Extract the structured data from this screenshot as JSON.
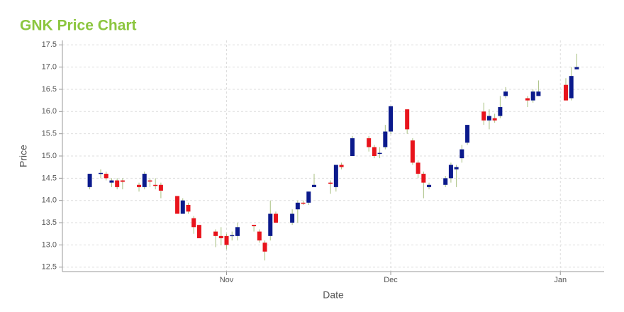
{
  "chart_data": {
    "type": "candlestick",
    "title": "GNK Price Chart",
    "x_label": "Date",
    "y_label": "Price",
    "title_color": "#8cc63f",
    "up_color": "#0b1a8c",
    "down_color": "#e8141c",
    "wick_color": "#a8c080",
    "grid": true,
    "xlim": [
      2,
      101
    ],
    "xticks": [
      {
        "value": 32,
        "label": "Nov"
      },
      {
        "value": 62,
        "label": "Dec"
      },
      {
        "value": 93,
        "label": "Jan"
      }
    ],
    "ylim": [
      12.4,
      17.6
    ],
    "yticks": [
      12.5,
      {
        "value": 13,
        "label": "13.0"
      },
      13.5,
      {
        "value": 14,
        "label": "14.0"
      },
      14.5,
      {
        "value": 15,
        "label": "15.0"
      },
      15.5,
      {
        "value": 16,
        "label": "16.0"
      },
      16.5,
      {
        "value": 17,
        "label": "17.0"
      },
      17.5
    ],
    "x": [
      7,
      9,
      10,
      11,
      12,
      13,
      16,
      17,
      18,
      19,
      20,
      23,
      24,
      25,
      26,
      27,
      30,
      31,
      32,
      33,
      34,
      37,
      38,
      39,
      40,
      41,
      44,
      45,
      46,
      47,
      48,
      51,
      52,
      53,
      55,
      58,
      59,
      60,
      61,
      62,
      65,
      66,
      67,
      68,
      69,
      72,
      73,
      74,
      75,
      76,
      79,
      80,
      81,
      82,
      83,
      87,
      88,
      89,
      94,
      95,
      96
    ],
    "open": [
      14.3,
      14.6,
      14.6,
      14.4,
      14.45,
      14.45,
      14.35,
      14.3,
      14.45,
      14.35,
      14.35,
      14.1,
      13.7,
      13.9,
      13.6,
      13.45,
      13.3,
      13.2,
      13.2,
      13.2,
      13.2,
      13.45,
      13.3,
      13.05,
      13.2,
      13.7,
      13.5,
      13.8,
      13.95,
      13.95,
      14.3,
      14.4,
      14.3,
      14.8,
      15.0,
      15.4,
      15.2,
      15.05,
      15.2,
      15.55,
      16.05,
      15.35,
      14.85,
      14.6,
      14.3,
      14.35,
      14.5,
      14.7,
      14.95,
      15.3,
      16.0,
      15.8,
      15.85,
      15.9,
      16.35,
      16.3,
      16.25,
      16.35,
      16.6,
      16.3,
      16.95
    ],
    "high": [
      14.6,
      14.7,
      14.65,
      14.5,
      14.5,
      14.5,
      14.4,
      14.65,
      14.5,
      14.5,
      14.4,
      14.1,
      14.05,
      13.95,
      13.65,
      13.45,
      13.35,
      13.4,
      13.25,
      13.3,
      13.5,
      13.45,
      13.35,
      13.1,
      14.0,
      13.75,
      13.8,
      14.0,
      14.0,
      14.2,
      14.6,
      14.45,
      14.8,
      14.85,
      15.45,
      15.45,
      15.25,
      15.2,
      15.7,
      16.12,
      16.05,
      15.4,
      14.9,
      14.65,
      14.4,
      14.55,
      14.85,
      14.8,
      15.25,
      15.7,
      16.2,
      16.05,
      15.95,
      16.35,
      16.55,
      16.35,
      16.5,
      16.7,
      16.75,
      17.0,
      17.3
    ],
    "low": [
      14.25,
      14.5,
      14.45,
      14.3,
      14.25,
      14.25,
      14.2,
      14.25,
      14.3,
      14.25,
      14.05,
      13.7,
      13.7,
      13.7,
      13.25,
      13.15,
      12.95,
      13.0,
      12.9,
      13.1,
      13.1,
      13.3,
      13.05,
      12.65,
      13.1,
      13.5,
      13.45,
      13.5,
      13.9,
      13.9,
      14.3,
      14.15,
      14.2,
      14.7,
      15.0,
      15.1,
      14.95,
      14.95,
      15.15,
      15.5,
      15.5,
      14.8,
      14.5,
      14.05,
      14.25,
      14.3,
      14.4,
      14.3,
      14.85,
      15.25,
      15.7,
      15.6,
      15.75,
      15.85,
      16.3,
      16.1,
      16.2,
      16.35,
      16.25,
      16.25,
      16.95
    ],
    "close": [
      14.6,
      14.62,
      14.5,
      14.45,
      14.3,
      14.42,
      14.3,
      14.6,
      14.43,
      14.33,
      14.22,
      13.7,
      14.0,
      13.75,
      13.4,
      13.15,
      13.2,
      13.15,
      13.0,
      13.22,
      13.4,
      13.42,
      13.1,
      12.85,
      13.7,
      13.5,
      13.7,
      13.95,
      13.93,
      14.2,
      14.35,
      14.38,
      14.8,
      14.75,
      15.4,
      15.2,
      15.0,
      15.07,
      15.55,
      16.12,
      15.6,
      14.85,
      14.6,
      14.4,
      14.35,
      14.5,
      14.8,
      14.75,
      15.15,
      15.7,
      15.8,
      15.9,
      15.8,
      16.1,
      16.45,
      16.25,
      16.45,
      16.45,
      16.25,
      16.8,
      17.0
    ]
  }
}
